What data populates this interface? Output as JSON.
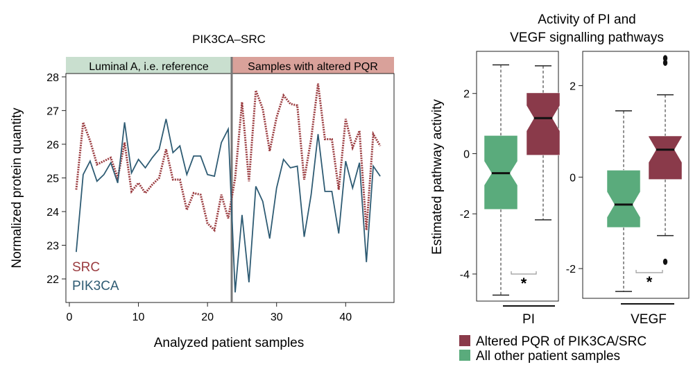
{
  "chart_data": [
    {
      "type": "line",
      "title": "PIK3CA–SRC",
      "xlabel": "Analyzed patient samples",
      "ylabel": "Normalized protein quantity",
      "xlim": [
        -0.5,
        47
      ],
      "ylim": [
        21.3,
        28.1
      ],
      "xticks": [
        0,
        10,
        20,
        30,
        40
      ],
      "yticks": [
        22,
        23,
        24,
        25,
        26,
        27,
        28
      ],
      "divider_x": 23.5,
      "region_labels": [
        {
          "label": "Luminal A, i.e. reference",
          "color": "#c9dfcf",
          "from": -0.5,
          "to": 23.5
        },
        {
          "label": "Samples with altered PQR",
          "color": "#d9a19a",
          "from": 23.5,
          "to": 47
        }
      ],
      "x": [
        1,
        2,
        3,
        4,
        5,
        6,
        7,
        8,
        9,
        10,
        11,
        12,
        13,
        14,
        15,
        16,
        17,
        18,
        19,
        20,
        21,
        22,
        23,
        24,
        25,
        26,
        27,
        28,
        29,
        30,
        31,
        32,
        33,
        34,
        35,
        36,
        37,
        38,
        39,
        40,
        41,
        42,
        43,
        44,
        45
      ],
      "series": [
        {
          "name": "SRC",
          "color": "#9a3b3f",
          "values": [
            24.65,
            26.65,
            26.1,
            25.4,
            25.5,
            25.6,
            25.0,
            26.05,
            24.6,
            24.85,
            24.55,
            24.8,
            25.0,
            25.85,
            24.95,
            24.95,
            24.05,
            24.55,
            24.5,
            23.65,
            23.45,
            24.5,
            23.8,
            25.0,
            27.25,
            24.9,
            27.6,
            27.05,
            25.8,
            26.8,
            27.45,
            27.2,
            27.15,
            24.95,
            26.15,
            27.8,
            26.15,
            26.15,
            24.65,
            26.75,
            25.9,
            26.4,
            23.45,
            26.3,
            25.95
          ]
        },
        {
          "name": "PIK3CA",
          "color": "#2e5b73",
          "values": [
            22.8,
            25.1,
            25.5,
            24.9,
            25.1,
            25.45,
            24.85,
            26.65,
            25.15,
            25.55,
            25.3,
            25.6,
            25.85,
            26.75,
            25.75,
            25.95,
            25.1,
            25.65,
            25.65,
            25.1,
            25.05,
            26.05,
            26.45,
            21.6,
            23.9,
            21.9,
            24.75,
            24.3,
            23.2,
            24.7,
            25.55,
            25.3,
            25.35,
            23.25,
            24.5,
            26.3,
            24.6,
            24.6,
            23.35,
            25.5,
            24.7,
            25.45,
            22.5,
            25.35,
            25.05
          ]
        }
      ],
      "legend": [
        "SRC",
        "PIK3CA"
      ],
      "legend_position": "bottom-left"
    },
    {
      "type": "boxplot",
      "title": "Activity of PI and VEGF signalling pathways",
      "title_lines": [
        "Activity of PI and",
        "VEGF signalling pathways"
      ],
      "ylabel": "Estimated pathway activity",
      "panels": [
        {
          "name": "PI",
          "ylim": [
            -4.9,
            3.4
          ],
          "yticks": [
            -4,
            -2,
            0,
            2
          ],
          "significance": "*",
          "boxes": [
            {
              "group": "All other patient samples",
              "color": "#5aab7c",
              "whisker_low": -4.7,
              "q1": -1.85,
              "median": -0.65,
              "q3": 0.6,
              "whisker_high": 2.95,
              "notch": [
                -1.05,
                -0.25
              ],
              "outliers": []
            },
            {
              "group": "Altered PQR of PIK3CA/SRC",
              "color": "#8a3a4a",
              "whisker_low": -2.2,
              "q1": -0.05,
              "median": 1.18,
              "q3": 2.02,
              "whisker_high": 2.92,
              "notch": [
                0.75,
                1.6
              ],
              "outliers": []
            }
          ]
        },
        {
          "name": "VEGF",
          "ylim": [
            -2.65,
            2.75
          ],
          "yticks": [
            -2,
            0,
            2
          ],
          "significance": "*",
          "boxes": [
            {
              "group": "All other patient samples",
              "color": "#5aab7c",
              "whisker_low": -2.5,
              "q1": -1.1,
              "median": -0.6,
              "q3": 0.15,
              "whisker_high": 1.45,
              "notch": [
                -0.88,
                -0.32
              ],
              "outliers": []
            },
            {
              "group": "Altered PQR of PIK3CA/SRC",
              "color": "#8a3a4a",
              "whisker_low": -1.28,
              "q1": -0.05,
              "median": 0.6,
              "q3": 0.9,
              "whisker_high": 1.8,
              "notch": [
                0.32,
                0.88
              ],
              "outliers": [
                2.6,
                2.5,
                -1.85
              ]
            }
          ]
        }
      ],
      "legend": [
        {
          "label": "Altered PQR of PIK3CA/SRC",
          "color": "#8a3a4a"
        },
        {
          "label": "All other patient samples",
          "color": "#5aab7c"
        }
      ],
      "legend_position": "bottom"
    }
  ]
}
